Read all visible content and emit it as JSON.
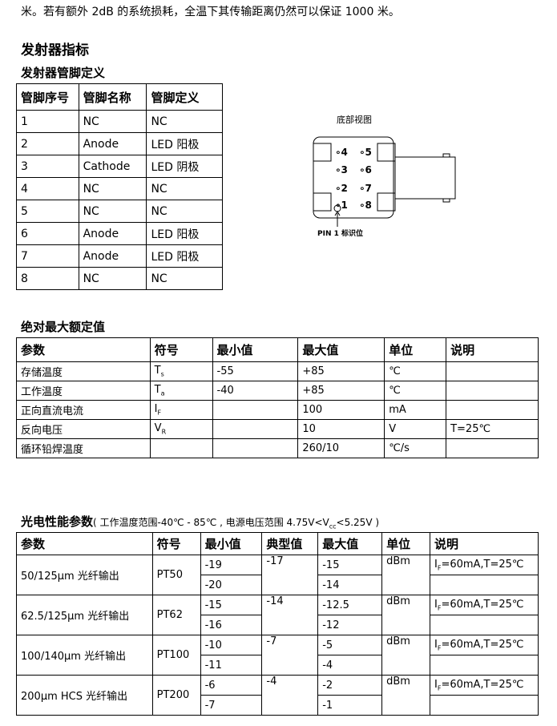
{
  "intro": "米。若有额外 2dB 的系统损耗，全温下其传输距离仍然可以保证 1000 米。",
  "section_title": "发射器指标",
  "pin_table": {
    "title": "发射器管脚定义",
    "headers": [
      "管脚序号",
      "管脚名称",
      "管脚定义"
    ],
    "rows": [
      [
        "1",
        "NC",
        "NC"
      ],
      [
        "2",
        "Anode",
        "LED 阳极"
      ],
      [
        "3",
        "Cathode",
        "LED 阴极"
      ],
      [
        "4",
        "NC",
        "NC"
      ],
      [
        "5",
        "NC",
        "NC"
      ],
      [
        "6",
        "Anode",
        "LED 阳极"
      ],
      [
        "7",
        "Anode",
        "LED 阳极"
      ],
      [
        "8",
        "NC",
        "NC"
      ]
    ]
  },
  "diagram": {
    "title": "底部视图",
    "pins": [
      "4",
      "5",
      "3",
      "6",
      "2",
      "7",
      "1",
      "8"
    ],
    "pin1_label": "PIN 1 标识位"
  },
  "abs_table": {
    "title": "绝对最大额定值",
    "headers": [
      "参数",
      "符号",
      "最小值",
      "最大值",
      "单位",
      "说明"
    ],
    "rows": [
      {
        "param": "存储温度",
        "sym": "T",
        "sub": "s",
        "min": "-55",
        "max": "+85",
        "unit": "℃",
        "note": ""
      },
      {
        "param": "工作温度",
        "sym": "T",
        "sub": "a",
        "min": "-40",
        "max": "+85",
        "unit": "℃",
        "note": ""
      },
      {
        "param": "正向直流电流",
        "sym": "I",
        "sub": "F",
        "min": "",
        "max": "100",
        "unit": "mA",
        "note": ""
      },
      {
        "param": "反向电压",
        "sym": "V",
        "sub": "R",
        "min": "",
        "max": "10",
        "unit": "V",
        "note": "T=25℃"
      },
      {
        "param": "循环铅焊温度",
        "sym": "",
        "sub": "",
        "min": "",
        "max": "260/10",
        "unit": "℃/s",
        "note": ""
      }
    ]
  },
  "opt_table": {
    "title": "光电性能参数",
    "cond_a": "( 工作温度范围-40℃  - 85℃ , 电源电压范围  4.75V<V",
    "cond_sub": "cc",
    "cond_b": "<5.25V )",
    "headers": [
      "参数",
      "符号",
      "最小值",
      "典型值",
      "最大值",
      "单位",
      "说明"
    ],
    "groups": [
      {
        "param": "50/125μm 光纤输出",
        "sym": "PT50",
        "min": [
          "-19",
          "-20"
        ],
        "typ": "-17",
        "max": [
          "-15",
          "-14"
        ],
        "unit": "dBm",
        "note_a": "I",
        "note_sub": "F",
        "note_b": "=60mA,T=25℃"
      },
      {
        "param": "62.5/125μm 光纤输出",
        "sym": "PT62",
        "min": [
          "-15",
          "-16"
        ],
        "typ": "-14",
        "max": [
          "-12.5",
          "-12"
        ],
        "unit": "dBm",
        "note_a": "I",
        "note_sub": "F",
        "note_b": "=60mA,T=25℃"
      },
      {
        "param": "100/140μm 光纤输出",
        "sym": "PT100",
        "min": [
          "-10",
          "-11"
        ],
        "typ": "-7",
        "max": [
          "-5",
          "-4"
        ],
        "unit": "dBm",
        "note_a": "I",
        "note_sub": "F",
        "note_b": "=60mA,T=25℃"
      },
      {
        "param": "200μm HCS 光纤输出",
        "sym": "PT200",
        "min": [
          "-6",
          "-7"
        ],
        "typ": "-4",
        "max": [
          "-2",
          "-1"
        ],
        "unit": "dBm",
        "note_a": "I",
        "note_sub": "F",
        "note_b": "=60mA,T=25℃"
      }
    ]
  }
}
